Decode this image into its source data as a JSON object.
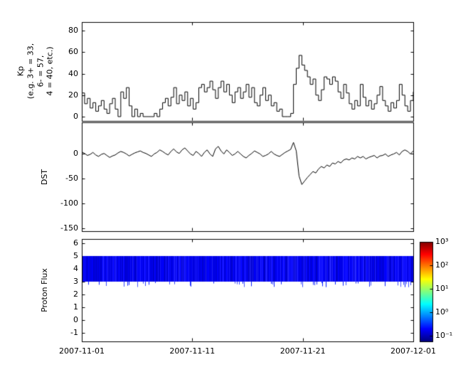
{
  "figure": {
    "background": "#ffffff"
  },
  "x_axis": {
    "tick_labels": [
      "2007-11-01",
      "2007-11-11",
      "2007-11-21",
      "2007-12-01"
    ]
  },
  "chart_data": [
    {
      "type": "line",
      "name": "kp-index",
      "style": "step",
      "step": true,
      "ylabel": "Kp\n(e.g. 3+ = 33,\n6- = 57,\n4 = 40, etc.)",
      "ylim": [
        -4,
        88
      ],
      "yticks": [
        0,
        20,
        40,
        60,
        80
      ],
      "line_color": "#000000",
      "x_start": "2007-11-01",
      "x_end": "2007-12-01",
      "values": [
        22,
        12,
        17,
        8,
        13,
        5,
        10,
        15,
        7,
        3,
        12,
        17,
        7,
        0,
        23,
        17,
        27,
        10,
        0,
        7,
        0,
        3,
        0,
        0,
        0,
        0,
        3,
        0,
        7,
        13,
        17,
        10,
        18,
        27,
        12,
        20,
        15,
        23,
        10,
        17,
        7,
        13,
        27,
        30,
        23,
        27,
        33,
        25,
        17,
        27,
        33,
        23,
        30,
        20,
        13,
        23,
        27,
        17,
        23,
        30,
        18,
        27,
        13,
        10,
        20,
        27,
        15,
        20,
        10,
        13,
        5,
        7,
        0,
        0,
        0,
        3,
        30,
        45,
        57,
        48,
        43,
        37,
        30,
        35,
        20,
        15,
        25,
        37,
        35,
        30,
        37,
        33,
        23,
        17,
        30,
        22,
        12,
        7,
        15,
        10,
        30,
        18,
        10,
        15,
        7,
        12,
        20,
        28,
        15,
        10,
        5,
        13,
        8,
        15,
        30,
        20,
        10,
        5,
        15,
        23
      ]
    },
    {
      "type": "line",
      "name": "dst-index",
      "step": false,
      "ylabel": "DST",
      "ylim": [
        -155,
        62
      ],
      "yticks": [
        0,
        -50,
        -100,
        -150
      ],
      "line_color": "#000000",
      "x_start": "2007-11-01",
      "x_end": "2007-12-01",
      "values": [
        3,
        0,
        -4,
        -2,
        2,
        -3,
        -6,
        -2,
        0,
        -4,
        -8,
        -5,
        -3,
        1,
        4,
        2,
        -1,
        -5,
        -2,
        1,
        3,
        5,
        2,
        0,
        -3,
        -6,
        -1,
        2,
        7,
        4,
        0,
        -3,
        4,
        9,
        3,
        0,
        7,
        11,
        5,
        -1,
        -4,
        4,
        0,
        -6,
        2,
        7,
        -1,
        -6,
        9,
        14,
        5,
        -1,
        7,
        2,
        -4,
        -1,
        4,
        -1,
        -6,
        -9,
        -4,
        0,
        5,
        2,
        -1,
        -6,
        -4,
        -1,
        4,
        -1,
        -4,
        -6,
        -2,
        2,
        5,
        8,
        22,
        5,
        -45,
        -62,
        -55,
        -48,
        -42,
        -36,
        -39,
        -31,
        -26,
        -29,
        -23,
        -26,
        -19,
        -21,
        -16,
        -19,
        -13,
        -11,
        -13,
        -9,
        -11,
        -6,
        -9,
        -6,
        -11,
        -8,
        -6,
        -4,
        -9,
        -5,
        -4,
        -1,
        -6,
        -3,
        -1,
        2,
        -3,
        4,
        7,
        4,
        -1,
        5
      ]
    },
    {
      "type": "heatmap",
      "name": "proton-flux",
      "ylabel": "Proton Flux",
      "ylim": [
        -1.67,
        6.33
      ],
      "yticks": [
        6,
        5,
        4,
        3,
        2,
        1,
        0,
        -1
      ],
      "band": {
        "y_min": 3,
        "y_max": 5,
        "color": "#0000e0",
        "note": "uniform low-flux blue band"
      },
      "x_start": "2007-11-01",
      "x_end": "2007-12-01",
      "colorbar": {
        "scale": "log",
        "tick_labels": [
          "10³",
          "10²",
          "10¹",
          "10⁰",
          "10⁻¹"
        ],
        "gradient": [
          {
            "pos": 0,
            "color": "#00007f"
          },
          {
            "pos": 0.125,
            "color": "#0000ff"
          },
          {
            "pos": 0.375,
            "color": "#00ffff"
          },
          {
            "pos": 0.625,
            "color": "#ffff00"
          },
          {
            "pos": 0.875,
            "color": "#ff0000"
          },
          {
            "pos": 1,
            "color": "#7f0000"
          }
        ]
      }
    }
  ]
}
